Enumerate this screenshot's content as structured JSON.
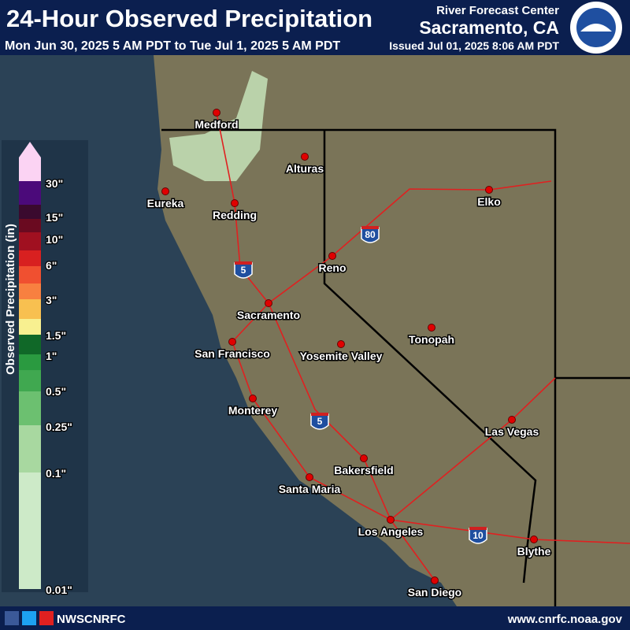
{
  "header": {
    "title": "24-Hour Observed Precipitation",
    "period": "Mon Jun 30, 2025 5 AM PDT to Tue Jul 1, 2025 5 AM PDT",
    "center": "River Forecast Center",
    "office": "Sacramento, CA",
    "issued": "Issued Jul 01, 2025 8:06 AM PDT"
  },
  "legend": {
    "title": "Observed Precipitation (in)",
    "labels": [
      "30\"",
      "15\"",
      "10\"",
      "6\"",
      "3\"",
      "1.5\"",
      "1\"",
      "0.5\"",
      "0.25\"",
      "0.1\"",
      "0.01\""
    ],
    "colors": [
      "#fbd3f3",
      "#4b0a7a",
      "#3a0a2e",
      "#6a0a20",
      "#a01020",
      "#d82020",
      "#f05030",
      "#f88040",
      "#f8c050",
      "#f8f090",
      "#106828",
      "#2a9a40",
      "#40a850",
      "#6cc070",
      "#a8d8a0",
      "#cdeac8"
    ]
  },
  "cities": [
    "Medford",
    "Alturas",
    "Eureka",
    "Redding",
    "Reno",
    "Elko",
    "Sacramento",
    "San Francisco",
    "Yosemite Valley",
    "Tonopah",
    "Monterey",
    "Las Vegas",
    "Bakersfield",
    "Santa Maria",
    "Los Angeles",
    "Blythe",
    "San Diego"
  ],
  "interstates": [
    "80",
    "5",
    "5",
    "10"
  ],
  "footer": {
    "social": "NWSCNRFC",
    "url": "www.cnrfc.noaa.gov"
  }
}
